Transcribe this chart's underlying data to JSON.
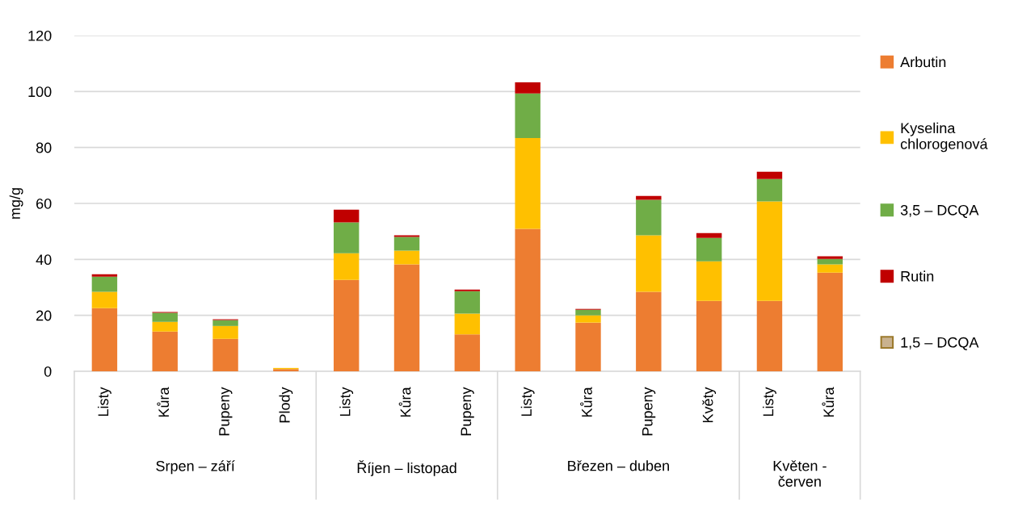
{
  "chart_data": {
    "type": "bar",
    "stacked": true,
    "ylabel": "mg/g",
    "categories": [
      "Listy",
      "Kůra",
      "Pupeny",
      "Plody",
      "Listy",
      "Kůra",
      "Pupeny",
      "Listy",
      "Kůra",
      "Pupeny",
      "Květy",
      "Listy",
      "Kůra"
    ],
    "series": [
      {
        "name": "Arbutin",
        "color": "#ed7d31",
        "values": [
          22.6,
          14.2,
          11.6,
          0.8,
          32.7,
          38.2,
          13.2,
          50.9,
          17.4,
          28.4,
          25.2,
          25.2,
          35.3
        ]
      },
      {
        "name": "Kyselina chlorogenová",
        "color": "#ffc000",
        "values": [
          5.8,
          3.5,
          4.6,
          0.4,
          9.5,
          4.9,
          7.4,
          32.5,
          2.6,
          20.2,
          14.1,
          35.5,
          2.9
        ]
      },
      {
        "name": "3,5 – DCQA",
        "color": "#70ad47",
        "values": [
          5.4,
          3.2,
          2.1,
          0,
          11.0,
          4.9,
          8.0,
          15.9,
          2.0,
          12.7,
          8.4,
          8.0,
          2.0
        ]
      },
      {
        "name": "Rutin",
        "color": "#c00000",
        "values": [
          0.9,
          0.3,
          0.3,
          0,
          4.6,
          0.6,
          0.6,
          4.0,
          0.3,
          1.4,
          1.7,
          2.6,
          0.9
        ]
      },
      {
        "name": "1,5 – DCQA",
        "color": "#c9b28f",
        "values": [
          0,
          0,
          0,
          0,
          0,
          0,
          0,
          0,
          0,
          0,
          0,
          0,
          0
        ]
      }
    ],
    "annotations": [
      "Srpen – září",
      "Říjen – listopad",
      "Březen – duben",
      "Květen -\nčerven"
    ],
    "ylim": [
      0,
      120
    ],
    "yticks": [
      0,
      20,
      40,
      60,
      80,
      100,
      120
    ],
    "grid": "y",
    "legend": "right"
  }
}
